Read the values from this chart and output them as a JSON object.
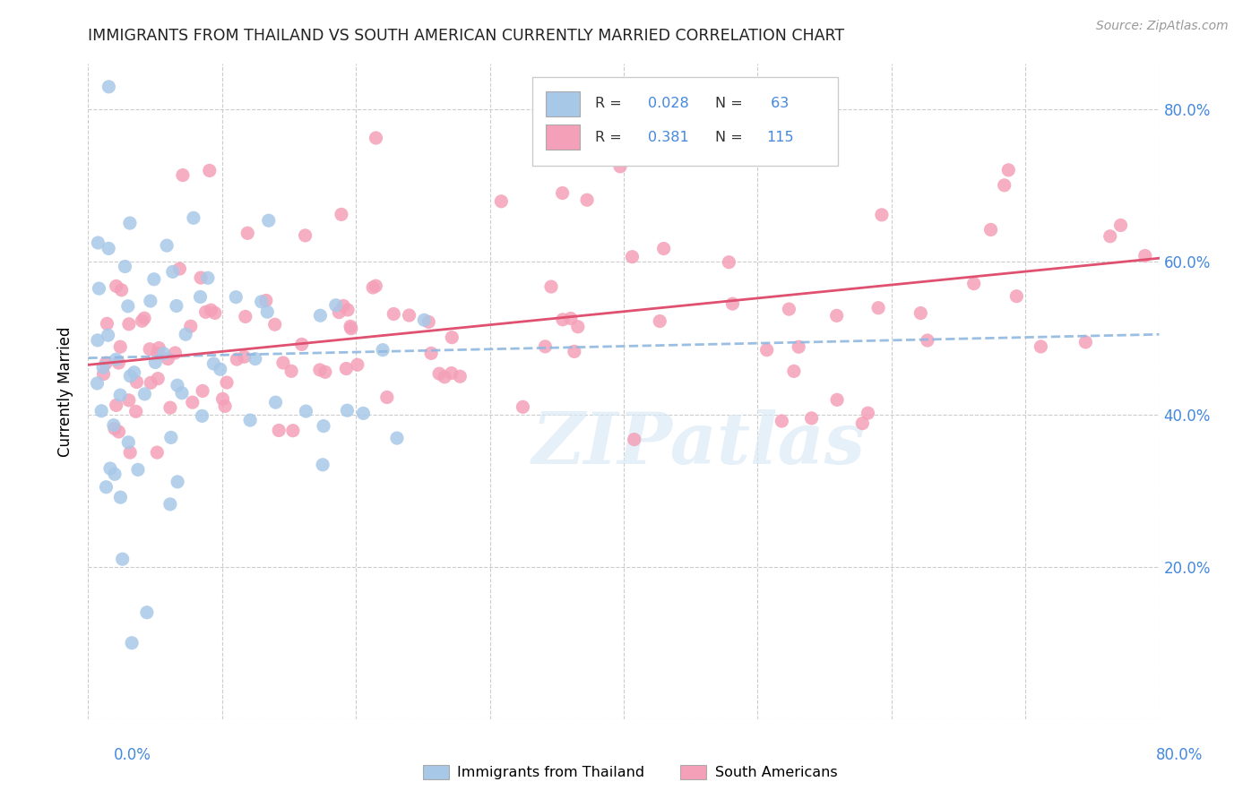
{
  "title": "IMMIGRANTS FROM THAILAND VS SOUTH AMERICAN CURRENTLY MARRIED CORRELATION CHART",
  "source": "Source: ZipAtlas.com",
  "ylabel": "Currently Married",
  "watermark": "ZIPatlas",
  "xlim": [
    0.0,
    0.8
  ],
  "ylim": [
    0.0,
    0.86
  ],
  "yticks": [
    0.2,
    0.4,
    0.6,
    0.8
  ],
  "ytick_labels": [
    "20.0%",
    "40.0%",
    "60.0%",
    "80.0%"
  ],
  "grid_yticks": [
    0.0,
    0.2,
    0.4,
    0.6,
    0.8
  ],
  "grid_xticks": [
    0.0,
    0.1,
    0.2,
    0.3,
    0.4,
    0.5,
    0.6,
    0.7,
    0.8
  ],
  "color_thailand": "#a8c8e8",
  "color_south_american": "#f4a0b8",
  "color_trend_thailand": "#90b8e0",
  "color_trend_south_american": "#e05070",
  "legend_label1": "Immigrants from Thailand",
  "legend_label2": "South Americans",
  "title_color": "#222222",
  "axis_color": "#4488dd",
  "grid_color": "#cccccc",
  "trend_thai_start_y": 0.474,
  "trend_thai_end_y": 0.505,
  "trend_south_start_y": 0.465,
  "trend_south_end_y": 0.605,
  "thai_seed": 77,
  "south_seed": 42
}
